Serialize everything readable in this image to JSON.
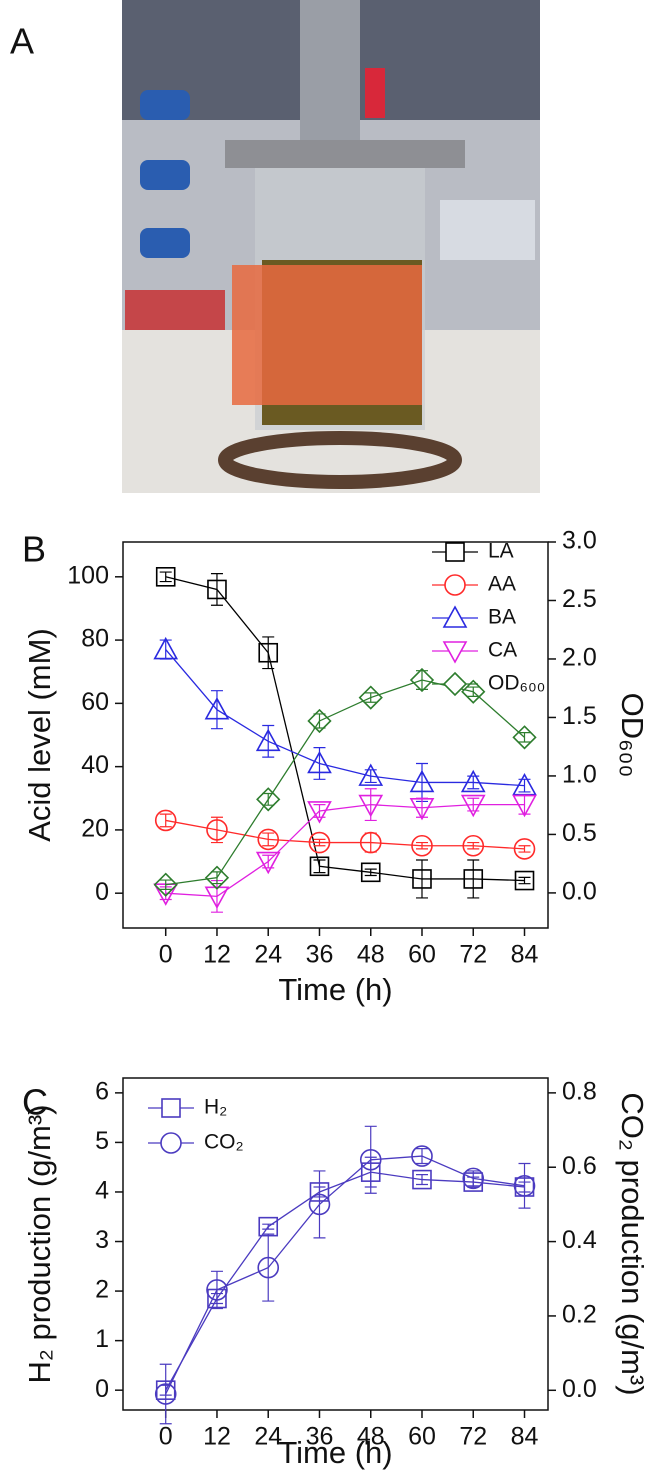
{
  "photo_panel_label": "A",
  "chart_data": [
    {
      "type": "line",
      "panel_label": "B",
      "xlabel": "Time (h)",
      "ylabel": "Acid level (mM)",
      "y2label": "OD₆₀₀",
      "x": [
        0,
        12,
        24,
        36,
        48,
        60,
        72,
        84
      ],
      "xlim": [
        -10,
        89.5
      ],
      "xticks": [
        0,
        12,
        24,
        36,
        48,
        60,
        72,
        84
      ],
      "ylim": [
        -11,
        111
      ],
      "yticks": [
        0,
        20,
        40,
        60,
        80,
        100
      ],
      "y2lim": [
        -0.3,
        3.0
      ],
      "y2ticks": [
        {
          "value": 0,
          "label": "0.0"
        },
        {
          "value": 0.5,
          "label": "0.5"
        },
        {
          "value": 1,
          "label": "1.0"
        },
        {
          "value": 1.5,
          "label": "1.5"
        },
        {
          "value": 2,
          "label": "2.0"
        },
        {
          "value": 2.5,
          "label": "2.5"
        },
        {
          "value": 3,
          "label": "3.0"
        }
      ],
      "legend": "upper right",
      "series": [
        {
          "name": "LA",
          "color": "#000000",
          "marker": "square",
          "values": [
            100,
            96,
            76,
            8.5,
            6.6,
            4.5,
            4.5,
            4
          ],
          "errors": [
            1.5,
            5,
            5,
            2,
            1,
            6,
            6,
            1
          ]
        },
        {
          "name": "AA",
          "color": "#ff2a2a",
          "marker": "circle",
          "values": [
            23,
            20,
            17,
            16,
            16,
            15,
            15,
            14
          ],
          "errors": [
            2,
            4,
            2,
            1,
            3,
            1,
            1,
            1
          ]
        },
        {
          "name": "BA",
          "color": "#2a2ae0",
          "marker": "triangle-up",
          "values": [
            77,
            58,
            48,
            41,
            37,
            35,
            35,
            34
          ],
          "errors": [
            3,
            6,
            5,
            5,
            2,
            6,
            2,
            2
          ]
        },
        {
          "name": "CA",
          "color": "#e020e0",
          "marker": "triangle-down",
          "values": [
            0,
            -1,
            10,
            26,
            28,
            27,
            28,
            28
          ],
          "errors": [
            2,
            5,
            2,
            2,
            5,
            3,
            2,
            3
          ]
        },
        {
          "name": "OD₆₀₀",
          "color": "#2e7d2e",
          "marker": "diamond",
          "axis": "y2",
          "values": [
            0.07,
            0.13,
            0.8,
            1.47,
            1.67,
            1.82,
            1.72,
            1.33
          ],
          "errors": [
            0.04,
            0.05,
            0.05,
            0.06,
            0.04,
            0.08,
            0.04,
            0.04
          ]
        }
      ]
    },
    {
      "type": "line",
      "panel_label": "C",
      "xlabel": "Time (h)",
      "ylabel": "H₂ production (g/m³)",
      "y2label": "CO₂ production (g/m³)",
      "x": [
        0,
        12,
        24,
        36,
        48,
        60,
        72,
        84
      ],
      "xlim": [
        -10,
        89.5
      ],
      "xticks": [
        0,
        12,
        24,
        36,
        48,
        60,
        72,
        84
      ],
      "ylim": [
        -0.4,
        6.3
      ],
      "yticks": [
        0,
        1,
        2,
        3,
        4,
        5,
        6
      ],
      "y2lim": [
        -0.053,
        0.84
      ],
      "y2ticks": [
        {
          "value": 0,
          "label": "0.0"
        },
        {
          "value": 0.2,
          "label": "0.2"
        },
        {
          "value": 0.4,
          "label": "0.4"
        },
        {
          "value": 0.6,
          "label": "0.6"
        },
        {
          "value": 0.8,
          "label": "0.8"
        }
      ],
      "legend": "upper left",
      "series": [
        {
          "name": "H₂",
          "color": "#4b3bc0",
          "marker": "square",
          "values": [
            0,
            1.85,
            3.3,
            4.0,
            4.4,
            4.25,
            4.2,
            4.1
          ],
          "errors": [
            0.1,
            0.1,
            0.05,
            0.1,
            0.3,
            0.1,
            0.1,
            0.1
          ]
        },
        {
          "name": "CO₂",
          "color": "#4b3bc0",
          "marker": "circle",
          "axis": "y2",
          "values": [
            -0.01,
            0.27,
            0.33,
            0.5,
            0.62,
            0.63,
            0.57,
            0.55
          ],
          "errors": [
            0.08,
            0.05,
            0.09,
            0.09,
            0.09,
            0.02,
            0.02,
            0.06
          ]
        }
      ]
    }
  ]
}
